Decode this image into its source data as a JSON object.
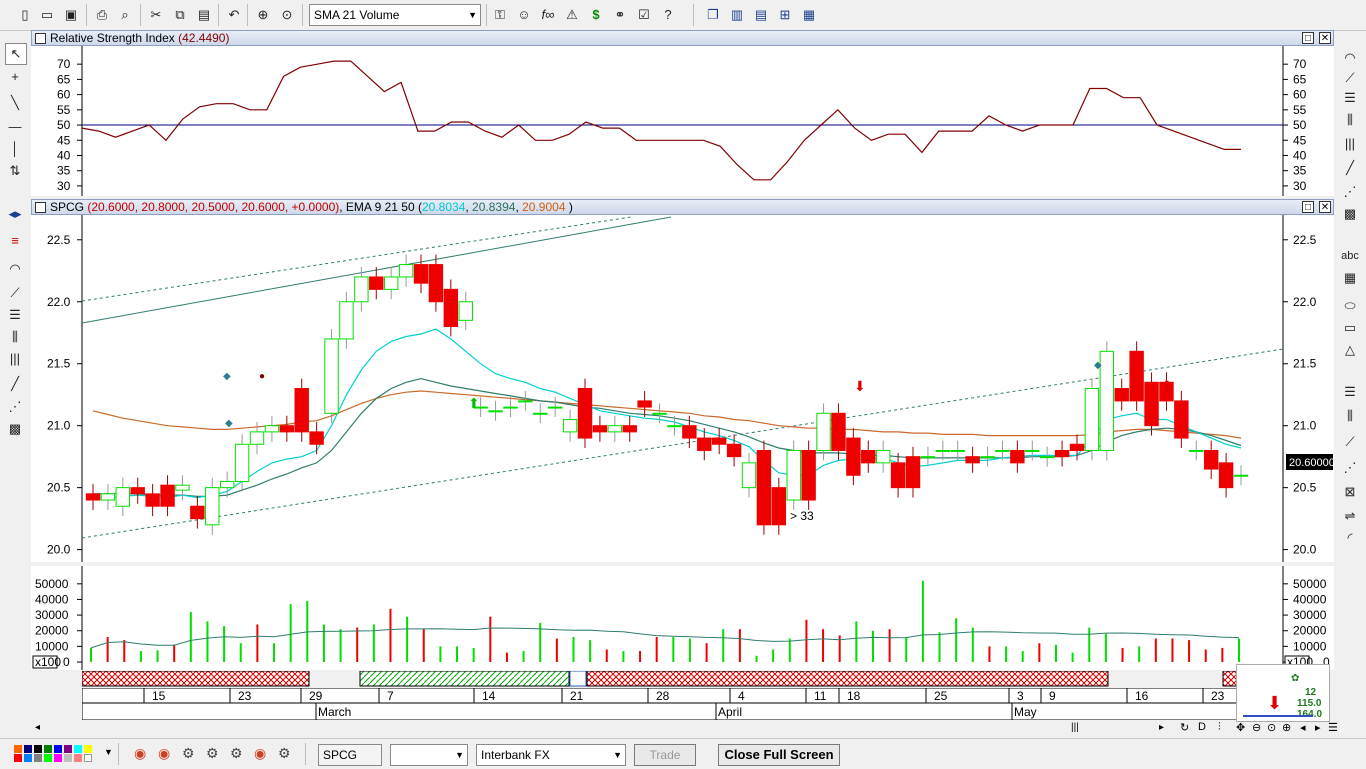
{
  "toolbar": {
    "indicator_combo": "SMA 21 Volume"
  },
  "rsi_panel": {
    "title": "Relative Strength Index",
    "value": "(42.4490)",
    "y_ticks": [
      "70",
      "65",
      "60",
      "55",
      "50",
      "45",
      "40",
      "35",
      "30"
    ]
  },
  "price_panel": {
    "symbol": "SPCG",
    "ohlc": "(20.6000, 20.8000, 20.5000, 20.6000, +0.0000)",
    "ema_label": "EMA 9 21 50",
    "ema9": "20.8034",
    "ema21": "20.8394",
    "ema50": "20.9004",
    "y_ticks": [
      "22.5",
      "22.0",
      "21.5",
      "21.0",
      "20.5",
      "20.0"
    ],
    "last_price": "20.60000",
    "annotation": "> 33"
  },
  "volume_panel": {
    "y_ticks": [
      "50000",
      "40000",
      "30000",
      "20000",
      "10000",
      "0"
    ],
    "scale_label": "x100"
  },
  "time_axis": {
    "day_labels": [
      "15",
      "23",
      "29",
      "7",
      "14",
      "21",
      "28",
      "4",
      "11",
      "18",
      "25",
      "3",
      "9",
      "16",
      "23"
    ],
    "month_labels": [
      "March",
      "April",
      "May"
    ]
  },
  "mini_panel": {
    "v1": "12",
    "v2": "115.0",
    "v3": "164.0"
  },
  "bottombar": {
    "symbol_field": "SPCG",
    "broker_combo": "Interbank FX",
    "trade_button": "Trade",
    "full_screen_button": "Close Full Screen"
  },
  "colors": {
    "bull": "#00e000",
    "bear": "#ee0000",
    "ema9": "#00d0d0",
    "ema21": "#2e7d6e",
    "ema50": "#c86a2a",
    "rsi": "#800000"
  },
  "chart_data": {
    "type": "candlestick",
    "series": [
      {
        "name": "SPCG",
        "o": [
          20.45,
          20.4,
          20.35,
          20.5,
          20.45,
          20.52,
          20.48,
          20.35,
          20.2,
          20.5,
          20.55,
          20.85,
          20.95,
          21.0,
          21.3,
          20.95,
          21.1,
          21.7,
          22.0,
          22.2,
          22.1,
          22.2,
          22.3,
          22.3,
          22.1,
          21.85,
          21.15,
          21.12,
          21.15,
          21.2,
          21.1,
          21.15,
          20.95,
          21.3,
          21.0,
          20.95,
          21.0,
          21.2,
          21.1,
          21.0,
          21.0,
          20.9,
          20.9,
          20.85,
          20.5,
          20.8,
          20.5,
          20.4,
          20.8,
          20.8,
          21.1,
          20.9,
          20.8,
          20.7,
          20.7,
          20.75,
          20.75,
          20.8,
          20.8,
          20.75,
          20.75,
          20.8,
          20.8,
          20.8,
          20.75,
          20.8,
          20.85,
          20.8,
          20.8,
          21.3,
          21.6,
          21.35,
          21.35,
          21.2,
          20.8,
          20.8,
          20.7,
          20.6
        ],
        "c": [
          20.4,
          20.45,
          20.5,
          20.45,
          20.35,
          20.35,
          20.52,
          20.25,
          20.5,
          20.55,
          20.85,
          20.95,
          21.0,
          20.95,
          20.95,
          20.85,
          21.7,
          22.0,
          22.2,
          22.1,
          22.2,
          22.3,
          22.15,
          22.0,
          21.8,
          22.0,
          21.15,
          21.12,
          21.15,
          21.2,
          21.1,
          21.15,
          21.05,
          20.9,
          20.95,
          21.0,
          20.95,
          21.15,
          21.1,
          21.0,
          20.9,
          20.8,
          20.85,
          20.75,
          20.7,
          20.2,
          20.2,
          20.8,
          20.4,
          21.1,
          20.8,
          20.6,
          20.7,
          20.8,
          20.5,
          20.5,
          20.75,
          20.8,
          20.8,
          20.7,
          20.75,
          20.8,
          20.7,
          20.8,
          20.75,
          20.75,
          20.8,
          21.3,
          21.6,
          21.2,
          21.2,
          21.0,
          21.2,
          20.9,
          20.8,
          20.65,
          20.5,
          20.6
        ]
      }
    ],
    "y_range": [
      19.9,
      22.7
    ],
    "ema": {
      "ema9": [
        20.42,
        20.42,
        20.43,
        20.44,
        20.43,
        20.42,
        20.44,
        20.42,
        20.44,
        20.47,
        20.55,
        20.63,
        20.7,
        20.73,
        20.75,
        20.8,
        21.0,
        21.25,
        21.45,
        21.6,
        21.68,
        21.72,
        21.74,
        21.78,
        21.7,
        21.6,
        21.5,
        21.42,
        21.38,
        21.35,
        21.3,
        21.27,
        21.22,
        21.17,
        21.12,
        21.1,
        21.08,
        21.06,
        21.05,
        21.03,
        20.99,
        20.95,
        20.92,
        20.88,
        20.83,
        20.72,
        20.62,
        20.6,
        20.6,
        20.68,
        20.72,
        20.73,
        20.73,
        20.74,
        20.7,
        20.67,
        20.68,
        20.7,
        20.72,
        20.72,
        20.72,
        20.74,
        20.75,
        20.76,
        20.76,
        20.76,
        20.76,
        20.9,
        21.05,
        21.08,
        21.1,
        21.05,
        21.05,
        21.0,
        20.95,
        20.9,
        20.85,
        20.82
      ],
      "ema21": [
        20.45,
        20.45,
        20.45,
        20.45,
        20.44,
        20.44,
        20.44,
        20.43,
        20.43,
        20.44,
        20.48,
        20.52,
        20.57,
        20.61,
        20.66,
        20.7,
        20.8,
        20.95,
        21.1,
        21.22,
        21.3,
        21.35,
        21.38,
        21.35,
        21.32,
        21.3,
        21.28,
        21.26,
        21.24,
        21.22,
        21.2,
        21.19,
        21.17,
        21.15,
        21.14,
        21.12,
        21.1,
        21.09,
        21.08,
        21.06,
        21.04,
        21.01,
        20.98,
        20.95,
        20.91,
        20.86,
        20.82,
        20.8,
        20.78,
        20.78,
        20.78,
        20.77,
        20.76,
        20.76,
        20.75,
        20.74,
        20.74,
        20.74,
        20.74,
        20.74,
        20.74,
        20.74,
        20.74,
        20.75,
        20.75,
        20.75,
        20.76,
        20.8,
        20.87,
        20.92,
        20.95,
        20.97,
        20.98,
        20.97,
        20.95,
        20.92,
        20.88,
        20.84
      ],
      "ema50": [
        21.12,
        21.09,
        21.06,
        21.04,
        21.02,
        21.0,
        20.99,
        20.98,
        20.97,
        20.97,
        20.98,
        20.99,
        21.0,
        21.01,
        21.03,
        21.04,
        21.08,
        21.13,
        21.18,
        21.22,
        21.25,
        21.27,
        21.28,
        21.27,
        21.26,
        21.25,
        21.24,
        21.23,
        21.22,
        21.21,
        21.2,
        21.19,
        21.18,
        21.17,
        21.16,
        21.15,
        21.14,
        21.13,
        21.12,
        21.11,
        21.1,
        21.08,
        21.07,
        21.05,
        21.04,
        21.02,
        21.0,
        20.99,
        20.98,
        20.98,
        20.97,
        20.97,
        20.96,
        20.95,
        20.95,
        20.94,
        20.94,
        20.93,
        20.93,
        20.93,
        20.92,
        20.92,
        20.92,
        20.92,
        20.92,
        20.92,
        20.92,
        20.93,
        20.95,
        20.96,
        20.97,
        20.97,
        20.96,
        20.95,
        20.94,
        20.93,
        20.92,
        20.9
      ]
    },
    "rsi_values": [
      49,
      48,
      46,
      48,
      50,
      45,
      52,
      56,
      57,
      57,
      55,
      55,
      66,
      69,
      70,
      71,
      71,
      66,
      61,
      64,
      48,
      48,
      51,
      51,
      48,
      46,
      50,
      45,
      45,
      47,
      51,
      49,
      49,
      45,
      45,
      45,
      45,
      45,
      43,
      37,
      32,
      32,
      38,
      45,
      50,
      55,
      49,
      45,
      47,
      47,
      41,
      48,
      48,
      48,
      53,
      50,
      48,
      50,
      50,
      50,
      62,
      62,
      59,
      59,
      50,
      48,
      46,
      44,
      42,
      42
    ],
    "rsi_range": [
      28,
      74
    ],
    "volume": {
      "values": [
        9000,
        16000,
        14000,
        7000,
        7500,
        11000,
        32000,
        26000,
        23000,
        12000,
        24000,
        12000,
        37000,
        39000,
        24000,
        21000,
        22000,
        24000,
        34000,
        29000,
        21000,
        10000,
        10000,
        9000,
        29000,
        6000,
        7000,
        25000,
        15000,
        16000,
        14000,
        8000,
        7000,
        7000,
        16000,
        16000,
        15000,
        12000,
        21000,
        21000,
        4000,
        8000,
        15000,
        27000,
        21000,
        17000,
        26000,
        20000,
        21000,
        16000,
        52000,
        19000,
        28000,
        22000,
        10000,
        10000,
        7000,
        12000,
        11000,
        6000,
        22000,
        18000,
        9000,
        10000,
        15000,
        15000,
        14000,
        8000,
        9000,
        15000
      ],
      "up": [
        1,
        0,
        0,
        1,
        1,
        0,
        1,
        1,
        1,
        1,
        0,
        1,
        1,
        1,
        1,
        1,
        0,
        1,
        0,
        1,
        0,
        1,
        1,
        1,
        0,
        0,
        1,
        1,
        0,
        1,
        1,
        0,
        1,
        0,
        0,
        1,
        1,
        0,
        1,
        0,
        1,
        1,
        1,
        0,
        0,
        0,
        1,
        1,
        0,
        1,
        1,
        1,
        1,
        1,
        0,
        1,
        1,
        0,
        1,
        1,
        1,
        1,
        0,
        1,
        0,
        0,
        0,
        0,
        0,
        1
      ],
      "y_range": [
        0,
        55000
      ]
    }
  }
}
